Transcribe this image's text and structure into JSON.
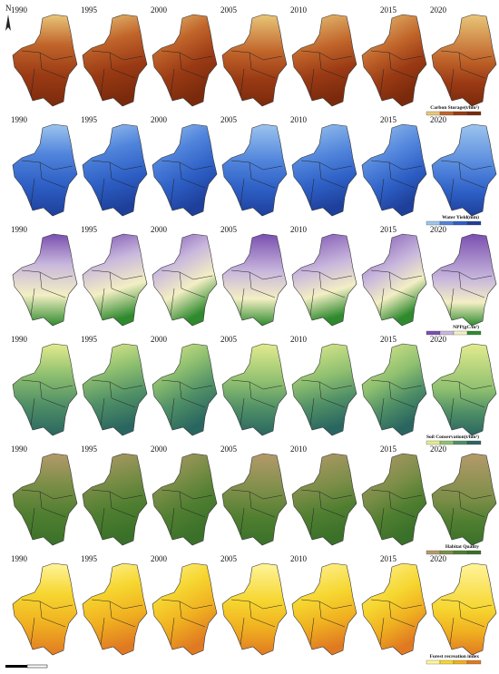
{
  "north_label": "N",
  "years": [
    "1990",
    "1995",
    "2000",
    "2005",
    "2010",
    "2015",
    "2020"
  ],
  "rows": [
    {
      "legend_title": "Carbon Storage(t/hm²)"
    },
    {
      "legend_title": "Water Yield(mm)"
    },
    {
      "legend_title": "NPP(gC/m²)"
    },
    {
      "legend_title": "Soil Conservation(t/hm²)"
    },
    {
      "legend_title": "Habitat Quality"
    },
    {
      "legend_title": "Forest recreation index"
    }
  ]
}
